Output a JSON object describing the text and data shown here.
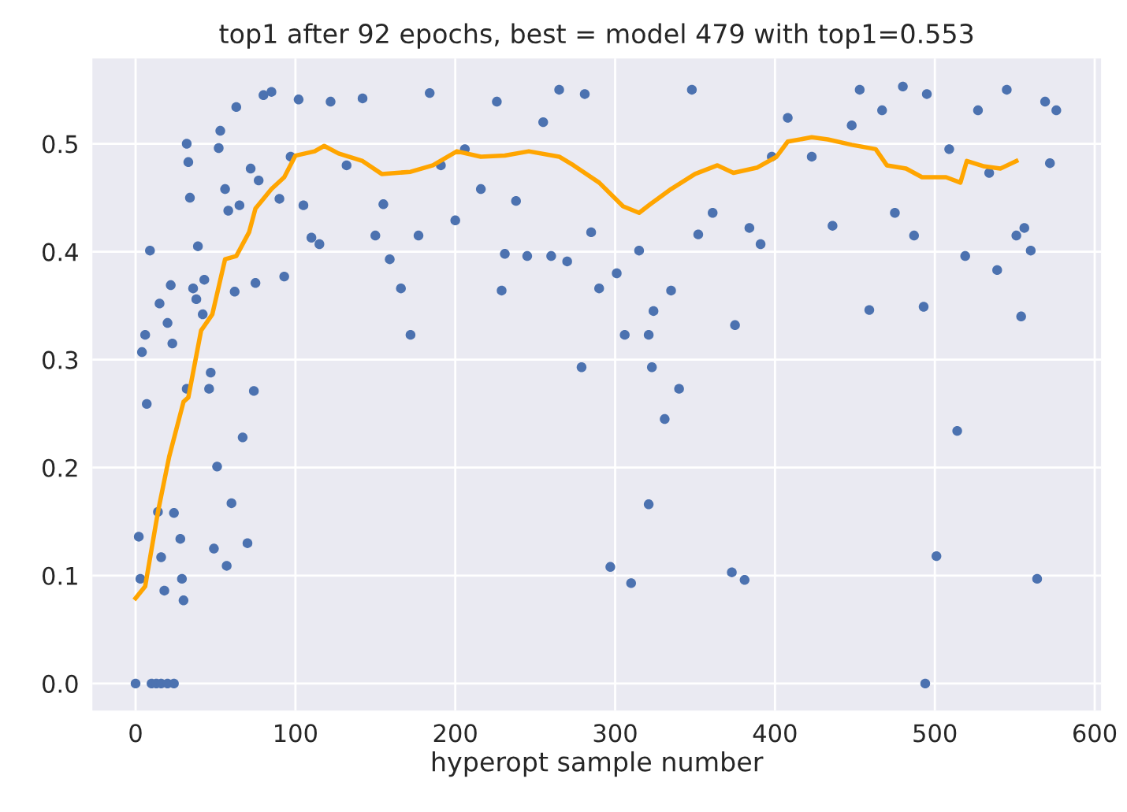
{
  "chart_data": {
    "type": "scatter",
    "title": "top1 after 92 epochs, best = model 479 with top1=0.553",
    "xlabel": "hyperopt sample number",
    "xlim": [
      -27,
      604
    ],
    "ylim": [
      -0.025,
      0.579
    ],
    "xticks": [
      0,
      100,
      200,
      300,
      400,
      500,
      600
    ],
    "yticks": [
      {
        "value": 0,
        "label": "0.0"
      },
      {
        "value": 0.1,
        "label": "0.1"
      },
      {
        "value": 0.2,
        "label": "0.2"
      },
      {
        "value": 0.3,
        "label": "0.3"
      },
      {
        "value": 0.4,
        "label": "0.4"
      },
      {
        "value": 0.5,
        "label": "0.5"
      }
    ],
    "grid": true,
    "series": [
      {
        "marker": "circle",
        "color": "#4c72b0",
        "x": [
          0,
          2,
          3,
          4,
          6,
          7,
          9,
          10,
          13,
          16,
          20,
          24,
          14,
          15,
          16,
          18,
          20,
          22,
          23,
          24,
          28,
          29,
          30,
          32,
          33,
          34,
          32,
          36,
          38,
          39,
          42,
          43,
          46,
          47,
          49,
          51,
          52,
          53,
          56,
          57,
          58,
          60,
          62,
          63,
          65,
          67,
          70,
          72,
          74,
          75,
          77,
          80,
          85,
          90,
          93,
          97,
          102,
          105,
          110,
          115,
          122,
          132,
          142,
          150,
          155,
          159,
          166,
          172,
          177,
          184,
          191,
          200,
          206,
          216,
          226,
          229,
          231,
          238,
          245,
          255,
          260,
          265,
          270,
          279,
          281,
          285,
          290,
          297,
          301,
          306,
          310,
          315,
          321,
          321,
          323,
          324,
          331,
          335,
          340,
          348,
          352,
          361,
          373,
          375,
          381,
          384,
          391,
          398,
          408,
          423,
          436,
          448,
          453,
          459,
          467,
          475,
          480,
          487,
          493,
          494,
          495,
          501,
          509,
          514,
          519,
          527,
          534,
          539,
          545,
          551,
          554,
          556,
          560,
          564,
          569,
          572,
          576
        ],
        "values": [
          0.0,
          0.136,
          0.097,
          0.307,
          0.323,
          0.259,
          0.401,
          0.0,
          0.0,
          0.0,
          0.0,
          0.0,
          0.159,
          0.352,
          0.117,
          0.086,
          0.334,
          0.369,
          0.315,
          0.158,
          0.134,
          0.097,
          0.077,
          0.5,
          0.483,
          0.45,
          0.273,
          0.366,
          0.356,
          0.405,
          0.342,
          0.374,
          0.273,
          0.288,
          0.125,
          0.201,
          0.496,
          0.512,
          0.458,
          0.109,
          0.438,
          0.167,
          0.363,
          0.534,
          0.443,
          0.228,
          0.13,
          0.477,
          0.271,
          0.371,
          0.466,
          0.545,
          0.548,
          0.449,
          0.377,
          0.488,
          0.541,
          0.443,
          0.413,
          0.407,
          0.539,
          0.48,
          0.542,
          0.415,
          0.444,
          0.393,
          0.366,
          0.323,
          0.415,
          0.547,
          0.48,
          0.429,
          0.495,
          0.458,
          0.539,
          0.364,
          0.398,
          0.447,
          0.396,
          0.52,
          0.396,
          0.55,
          0.391,
          0.293,
          0.546,
          0.418,
          0.366,
          0.108,
          0.38,
          0.323,
          0.093,
          0.401,
          0.323,
          0.166,
          0.293,
          0.345,
          0.245,
          0.364,
          0.273,
          0.55,
          0.416,
          0.436,
          0.103,
          0.332,
          0.096,
          0.422,
          0.407,
          0.488,
          0.524,
          0.488,
          0.424,
          0.517,
          0.55,
          0.346,
          0.531,
          0.436,
          0.553,
          0.415,
          0.349,
          0.0,
          0.546,
          0.118,
          0.495,
          0.234,
          0.396,
          0.531,
          0.473,
          0.383,
          0.55,
          0.415,
          0.34,
          0.422,
          0.401,
          0.097,
          0.539,
          0.482,
          0.531
        ]
      },
      {
        "type": "line",
        "color": "#ffa500",
        "x": [
          0,
          6,
          14,
          21,
          30,
          33,
          41,
          48,
          56,
          63,
          71,
          75,
          85,
          93,
          100,
          112,
          118,
          127,
          142,
          154,
          172,
          186,
          201,
          216,
          231,
          246,
          265,
          274,
          290,
          305,
          315,
          322,
          335,
          350,
          364,
          374,
          389,
          401,
          408,
          423,
          433,
          448,
          463,
          470,
          482,
          492,
          507,
          516,
          520,
          531,
          541,
          551
        ],
        "values": [
          0.079,
          0.09,
          0.159,
          0.21,
          0.261,
          0.265,
          0.327,
          0.342,
          0.393,
          0.396,
          0.418,
          0.44,
          0.458,
          0.469,
          0.489,
          0.493,
          0.498,
          0.491,
          0.484,
          0.472,
          0.474,
          0.48,
          0.493,
          0.488,
          0.489,
          0.493,
          0.488,
          0.48,
          0.464,
          0.442,
          0.436,
          0.444,
          0.458,
          0.472,
          0.48,
          0.473,
          0.478,
          0.488,
          0.502,
          0.506,
          0.504,
          0.499,
          0.495,
          0.48,
          0.477,
          0.469,
          0.469,
          0.464,
          0.484,
          0.479,
          0.477,
          0.484
        ]
      }
    ]
  }
}
